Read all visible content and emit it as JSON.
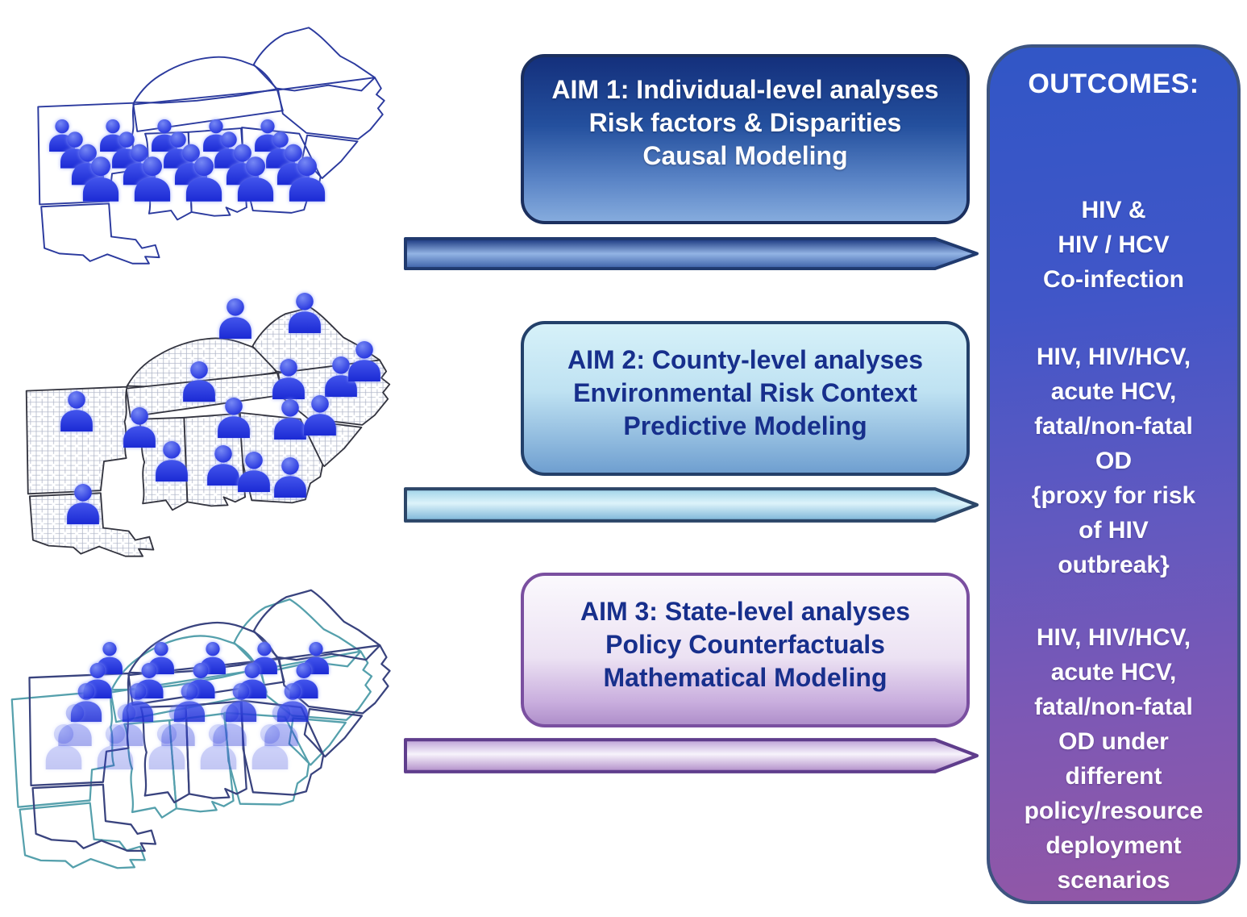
{
  "aims": [
    {
      "name": "aim-1",
      "lines": [
        "AIM 1: Individual-level analyses",
        "Risk factors & Disparities",
        "Causal Modeling"
      ]
    },
    {
      "name": "aim-2",
      "lines": [
        "AIM 2: County-level analyses",
        "Environmental Risk Context",
        "Predictive Modeling"
      ]
    },
    {
      "name": "aim-3",
      "lines": [
        "AIM 3: State-level analyses",
        "Policy Counterfactuals",
        "Mathematical Modeling"
      ]
    }
  ],
  "outcomes": {
    "heading": "OUTCOMES:",
    "sections": [
      {
        "for_aim": "aim-1",
        "lines": [
          "HIV &",
          "HIV / HCV",
          "Co-infection"
        ]
      },
      {
        "for_aim": "aim-2",
        "lines": [
          "HIV, HIV/HCV,",
          "acute HCV,",
          "fatal/non-fatal",
          "OD",
          "{proxy for risk",
          "of HIV",
          "outbreak}"
        ]
      },
      {
        "for_aim": "aim-3",
        "lines": [
          "HIV, HIV/HCV,",
          "acute HCV,",
          "fatal/non-fatal",
          "OD under",
          "different",
          "policy/resource",
          "deployment",
          "scenarios"
        ]
      }
    ]
  },
  "maps": [
    {
      "name": "individual-level-map",
      "icon": "person-icon",
      "layout": "grid",
      "rows": 4,
      "cols": 5,
      "base": [
        12,
        41
      ],
      "col_step": 13.1,
      "row_shift": 3.3,
      "row_step": 4.9,
      "size": 40,
      "row_scale": 0.13,
      "row_opacity": [
        1,
        1,
        1,
        1
      ]
    },
    {
      "name": "county-level-map",
      "icon": "person-icon",
      "layout": "scatter",
      "size": 50,
      "positions": [
        [
          56.6,
          7.6
        ],
        [
          73.4,
          5.8
        ],
        [
          47.9,
          28.0
        ],
        [
          69.5,
          27.2
        ],
        [
          82.2,
          26.4
        ],
        [
          87.9,
          21.5
        ],
        [
          18.2,
          37.7
        ],
        [
          33.4,
          42.9
        ],
        [
          56.3,
          39.8
        ],
        [
          69.9,
          40.3
        ],
        [
          77.1,
          39.0
        ],
        [
          41.2,
          53.9
        ],
        [
          53.7,
          55.2
        ],
        [
          61.1,
          57.3
        ],
        [
          69.9,
          59.2
        ],
        [
          19.7,
          67.8
        ]
      ]
    },
    {
      "name": "state-level-map",
      "icon": "person-icon",
      "layout": "grid",
      "rows": 5,
      "cols": 5,
      "base": [
        25.5,
        25
      ],
      "col_step": 12.6,
      "row_shift": -2.8,
      "row_step": 6.9,
      "size": 40,
      "row_scale": 0.1,
      "row_opacity": [
        1,
        1,
        0.85,
        0.38,
        0.26
      ]
    }
  ],
  "colors": {
    "aim1_fill_top": "#14307c",
    "aim1_fill_bottom": "#85abdd",
    "aim1_border": "#1b2f5e",
    "aim2_fill_top": "#d6f1f9",
    "aim2_fill_bottom": "#6f9fd0",
    "aim2_border": "#23406a",
    "aim3_fill_top": "#fbf9fd",
    "aim3_fill_bottom": "#af8fca",
    "aim3_border": "#7a4fa0",
    "aim_text_dark_navy": "#172f8c",
    "aim_text_light": "#ffffff",
    "outcomes_fill_top": "#3156c6",
    "outcomes_fill_bottom": "#9257a6",
    "outcomes_border": "#3d5480",
    "person_blue": "#2433de",
    "map_navy": "#2b3a9e",
    "map_state_border_dark": "#33343f",
    "map_teal": "#55a0ac",
    "county_line": "#b2b8ca"
  }
}
